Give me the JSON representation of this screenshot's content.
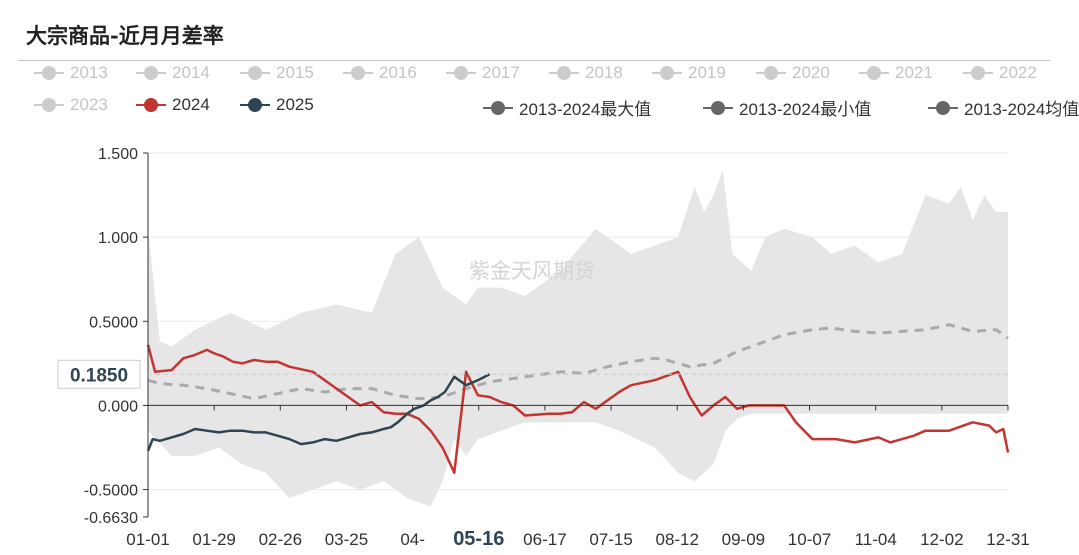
{
  "title": "大宗商品-近月月差率",
  "watermark": "紫金天风期货",
  "legend": [
    {
      "label": "2013",
      "color": "#cccccc",
      "active": false
    },
    {
      "label": "2014",
      "color": "#cccccc",
      "active": false
    },
    {
      "label": "2015",
      "color": "#cccccc",
      "active": false
    },
    {
      "label": "2016",
      "color": "#cccccc",
      "active": false
    },
    {
      "label": "2017",
      "color": "#cccccc",
      "active": false
    },
    {
      "label": "2018",
      "color": "#cccccc",
      "active": false
    },
    {
      "label": "2019",
      "color": "#cccccc",
      "active": false
    },
    {
      "label": "2020",
      "color": "#cccccc",
      "active": false
    },
    {
      "label": "2021",
      "color": "#cccccc",
      "active": false
    },
    {
      "label": "2022",
      "color": "#cccccc",
      "active": false
    },
    {
      "label": "2023",
      "color": "#cccccc",
      "active": false
    },
    {
      "label": "2024",
      "color": "#c23531",
      "active": true
    },
    {
      "label": "2025",
      "color": "#2f4554",
      "active": true
    },
    {
      "label": "2013-2024最大值",
      "color": "#666666",
      "active": true
    },
    {
      "label": "2013-2024最小值",
      "color": "#666666",
      "active": true
    },
    {
      "label": "2013-2024均值",
      "color": "#666666",
      "active": true
    }
  ],
  "chart_data": {
    "type": "line",
    "x_ticks": [
      "01-01",
      "01-29",
      "02-26",
      "03-25",
      "04-",
      "05-16",
      "06-17",
      "07-15",
      "08-12",
      "09-09",
      "10-07",
      "11-04",
      "12-02",
      "12-31"
    ],
    "highlight_tick": "05-16",
    "y_ticks": [
      "1.500",
      "1.000",
      "0.5000",
      "0.000",
      "-0.5000",
      "-0.6630"
    ],
    "y_tick_values": [
      1.5,
      1.0,
      0.5,
      0.0,
      -0.5,
      -0.663
    ],
    "ylim": [
      -0.663,
      1.5
    ],
    "xlim": [
      0,
      365
    ],
    "pointer_label": "0.1850",
    "pointer_value": 0.185,
    "grid": true,
    "series": [
      {
        "name": "2013-2024最大值",
        "kind": "band_upper",
        "color": "#e6e6e6",
        "x": [
          0,
          5,
          10,
          20,
          35,
          50,
          65,
          80,
          95,
          105,
          115,
          125,
          135,
          140,
          150,
          160,
          175,
          190,
          205,
          215,
          225,
          232,
          236,
          240,
          244,
          248,
          256,
          262,
          270,
          282,
          290,
          300,
          310,
          320,
          330,
          340,
          345,
          350,
          355,
          360,
          365
        ],
        "values": [
          1.05,
          0.38,
          0.35,
          0.45,
          0.55,
          0.45,
          0.55,
          0.6,
          0.55,
          0.9,
          1.0,
          0.7,
          0.6,
          0.7,
          0.7,
          0.65,
          0.8,
          1.05,
          0.9,
          0.95,
          1.0,
          1.3,
          1.15,
          1.25,
          1.4,
          0.9,
          0.8,
          1.0,
          1.05,
          1.0,
          0.9,
          0.95,
          0.85,
          0.9,
          1.25,
          1.2,
          1.3,
          1.1,
          1.25,
          1.15,
          1.15
        ]
      },
      {
        "name": "2013-2024最小值",
        "kind": "band_lower",
        "color": "#e6e6e6",
        "x": [
          0,
          10,
          20,
          30,
          40,
          50,
          60,
          70,
          80,
          90,
          100,
          110,
          120,
          125,
          130,
          135,
          140,
          150,
          160,
          175,
          190,
          200,
          215,
          225,
          232,
          240,
          245,
          250,
          256,
          262,
          270,
          282,
          290,
          300,
          310,
          320,
          330,
          340,
          350,
          360,
          365
        ],
        "values": [
          -0.15,
          -0.3,
          -0.3,
          -0.25,
          -0.35,
          -0.4,
          -0.55,
          -0.5,
          -0.45,
          -0.5,
          -0.45,
          -0.55,
          -0.6,
          -0.45,
          -0.2,
          -0.3,
          -0.2,
          -0.15,
          -0.1,
          -0.1,
          -0.1,
          -0.15,
          -0.25,
          -0.4,
          -0.45,
          -0.35,
          -0.15,
          -0.08,
          -0.05,
          -0.05,
          -0.05,
          -0.05,
          -0.05,
          -0.05,
          -0.05,
          -0.05,
          -0.05,
          -0.05,
          -0.05,
          -0.05,
          -0.05
        ]
      },
      {
        "name": "2013-2024均值",
        "kind": "dashed",
        "color": "#aaaaaa",
        "x": [
          0,
          5,
          15,
          25,
          35,
          45,
          55,
          65,
          75,
          85,
          95,
          105,
          115,
          125,
          135,
          145,
          155,
          165,
          175,
          185,
          195,
          205,
          215,
          220,
          230,
          240,
          250,
          262,
          270,
          282,
          290,
          300,
          310,
          320,
          330,
          340,
          350,
          360,
          365
        ],
        "values": [
          0.15,
          0.13,
          0.12,
          0.1,
          0.07,
          0.04,
          0.07,
          0.1,
          0.08,
          0.1,
          0.1,
          0.06,
          0.04,
          0.05,
          0.1,
          0.14,
          0.16,
          0.18,
          0.2,
          0.19,
          0.23,
          0.26,
          0.28,
          0.27,
          0.23,
          0.25,
          0.32,
          0.38,
          0.42,
          0.45,
          0.46,
          0.44,
          0.43,
          0.44,
          0.45,
          0.48,
          0.44,
          0.45,
          0.4
        ]
      },
      {
        "name": "2024",
        "kind": "line",
        "color": "#c23531",
        "x": [
          0,
          3,
          10,
          15,
          20,
          25,
          28,
          32,
          36,
          40,
          45,
          50,
          55,
          60,
          70,
          80,
          90,
          95,
          100,
          105,
          110,
          115,
          120,
          125,
          130,
          135,
          140,
          145,
          150,
          155,
          160,
          170,
          175,
          180,
          185,
          190,
          200,
          205,
          215,
          225,
          230,
          235,
          240,
          245,
          250,
          255,
          260,
          265,
          270,
          275,
          282,
          292,
          300,
          310,
          315,
          325,
          330,
          340,
          350,
          357,
          360,
          363,
          365
        ],
        "values": [
          0.36,
          0.2,
          0.21,
          0.28,
          0.3,
          0.33,
          0.31,
          0.29,
          0.26,
          0.25,
          0.27,
          0.26,
          0.26,
          0.23,
          0.2,
          0.1,
          0.0,
          0.02,
          -0.04,
          -0.05,
          -0.05,
          -0.08,
          -0.15,
          -0.25,
          -0.4,
          0.2,
          0.06,
          0.05,
          0.02,
          0.0,
          -0.06,
          -0.05,
          -0.05,
          -0.04,
          0.02,
          -0.02,
          0.08,
          0.12,
          0.15,
          0.2,
          0.05,
          -0.06,
          0.0,
          0.05,
          -0.02,
          0.0,
          0.0,
          0.0,
          0.0,
          -0.1,
          -0.2,
          -0.2,
          -0.22,
          -0.19,
          -0.22,
          -0.18,
          -0.15,
          -0.15,
          -0.1,
          -0.12,
          -0.16,
          -0.14,
          -0.28
        ]
      },
      {
        "name": "2025",
        "kind": "line",
        "color": "#2f4554",
        "x": [
          0,
          2,
          5,
          10,
          15,
          20,
          25,
          30,
          35,
          40,
          45,
          50,
          55,
          60,
          65,
          70,
          75,
          80,
          85,
          90,
          95,
          100,
          103,
          106,
          110,
          113,
          117,
          120,
          123,
          126,
          130,
          135,
          140,
          145
        ],
        "values": [
          -0.27,
          -0.2,
          -0.21,
          -0.19,
          -0.17,
          -0.14,
          -0.15,
          -0.16,
          -0.15,
          -0.15,
          -0.16,
          -0.16,
          -0.18,
          -0.2,
          -0.23,
          -0.22,
          -0.2,
          -0.21,
          -0.19,
          -0.17,
          -0.16,
          -0.14,
          -0.13,
          -0.1,
          -0.05,
          -0.02,
          0.0,
          0.03,
          0.05,
          0.08,
          0.17,
          0.12,
          0.15,
          0.185
        ]
      }
    ]
  }
}
